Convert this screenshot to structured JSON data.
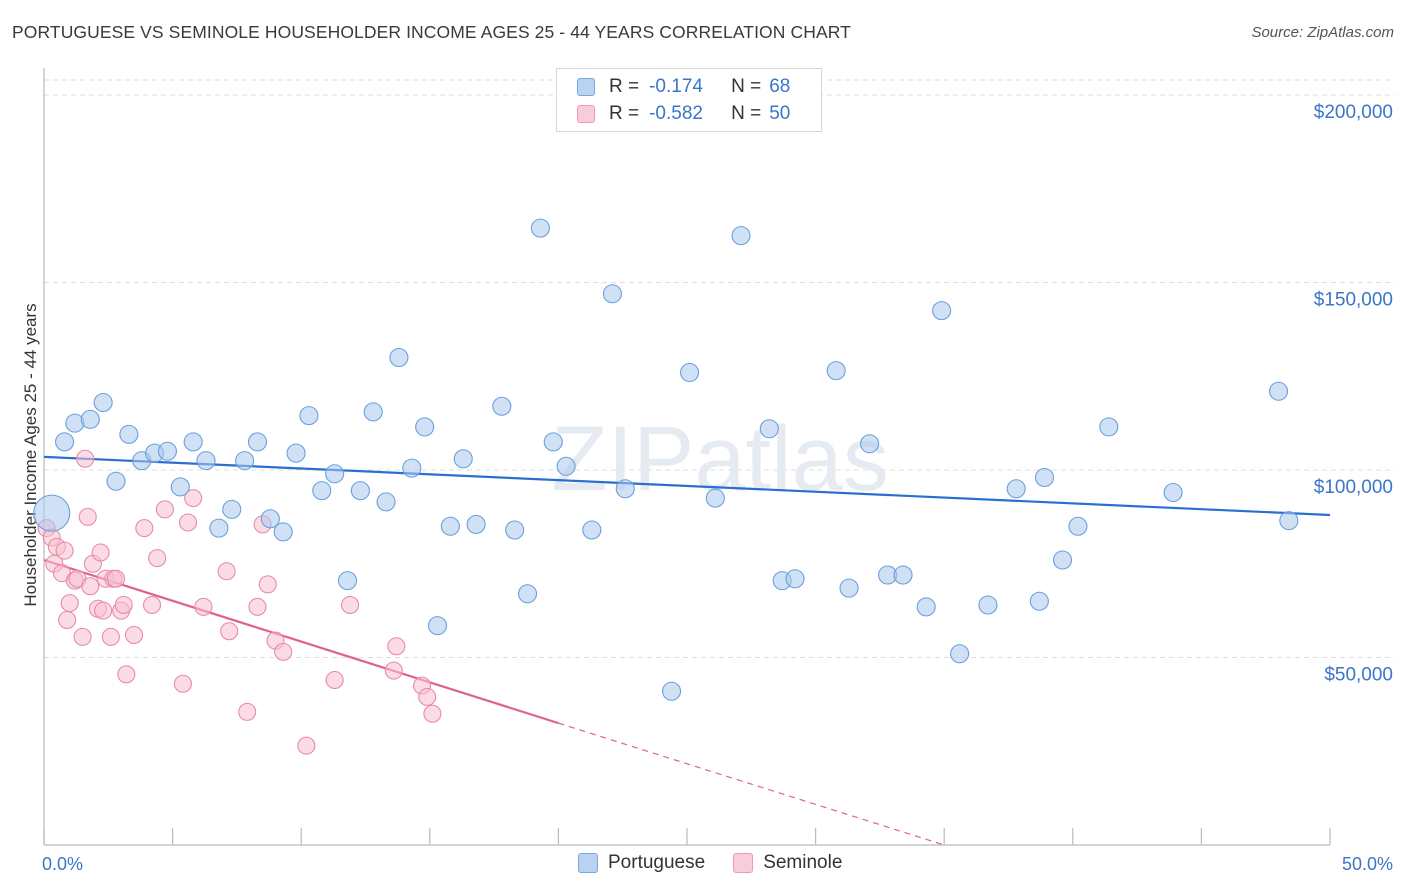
{
  "title": "PORTUGUESE VS SEMINOLE HOUSEHOLDER INCOME AGES 25 - 44 YEARS CORRELATION CHART",
  "source": "Source: ZipAtlas.com",
  "watermark": "ZIPatlas",
  "legend": {
    "rows": [
      {
        "r_label": "R =",
        "r_value": "-0.174",
        "n_label": "N =",
        "n_value": "68"
      },
      {
        "r_label": "R =",
        "r_value": "-0.582",
        "n_label": "N =",
        "n_value": "50"
      }
    ]
  },
  "bottom_legend": [
    "Portuguese",
    "Seminole"
  ],
  "colors": {
    "portuguese_fill": "#a9c8ef",
    "portuguese_stroke": "#6a9fdc",
    "portuguese_line": "#2a6fd0",
    "seminole_fill": "#f7bfcf",
    "seminole_stroke": "#e88aa6",
    "seminole_line": "#e0628c",
    "value_text": "#3a76c8",
    "grid": "#dddddd"
  },
  "chart_data": {
    "type": "scatter",
    "title": "PORTUGUESE VS SEMINOLE HOUSEHOLDER INCOME AGES 25 - 44 YEARS CORRELATION CHART",
    "xlabel": "",
    "ylabel": "Householder Income Ages 25 - 44 years",
    "xlim": [
      0,
      50
    ],
    "ylim": [
      0,
      210000
    ],
    "x_tick_labels": [
      "0.0%",
      "50.0%"
    ],
    "y_ticks": [
      50000,
      100000,
      150000,
      200000
    ],
    "y_tick_labels": [
      "$50,000",
      "$100,000",
      "$150,000",
      "$200,000"
    ],
    "grid": true,
    "series": [
      {
        "name": "Portuguese",
        "R": -0.174,
        "N": 68,
        "trend": {
          "x": [
            0,
            50
          ],
          "y": [
            103500,
            88000
          ]
        },
        "points": [
          [
            0.3,
            88500
          ],
          [
            0.8,
            107500
          ],
          [
            1.2,
            112500
          ],
          [
            1.8,
            113500
          ],
          [
            2.3,
            118000
          ],
          [
            2.8,
            97000
          ],
          [
            3.3,
            109500
          ],
          [
            3.8,
            102500
          ],
          [
            4.3,
            104500
          ],
          [
            4.8,
            105000
          ],
          [
            5.3,
            95500
          ],
          [
            5.8,
            107500
          ],
          [
            6.3,
            102500
          ],
          [
            6.8,
            84500
          ],
          [
            7.3,
            89500
          ],
          [
            7.8,
            102500
          ],
          [
            8.3,
            107500
          ],
          [
            8.8,
            87000
          ],
          [
            9.3,
            83500
          ],
          [
            9.8,
            104500
          ],
          [
            10.3,
            114500
          ],
          [
            10.8,
            94500
          ],
          [
            11.3,
            99000
          ],
          [
            11.8,
            70500
          ],
          [
            12.3,
            94500
          ],
          [
            12.8,
            115500
          ],
          [
            13.3,
            91500
          ],
          [
            13.8,
            130000
          ],
          [
            14.3,
            100500
          ],
          [
            14.8,
            111500
          ],
          [
            15.3,
            58500
          ],
          [
            15.8,
            85000
          ],
          [
            16.3,
            103000
          ],
          [
            16.8,
            85500
          ],
          [
            17.8,
            117000
          ],
          [
            18.3,
            84000
          ],
          [
            18.8,
            67000
          ],
          [
            19.3,
            164500
          ],
          [
            19.8,
            107500
          ],
          [
            20.3,
            101000
          ],
          [
            21.3,
            84000
          ],
          [
            22.1,
            147000
          ],
          [
            22.6,
            95000
          ],
          [
            24.4,
            41000
          ],
          [
            25.1,
            126000
          ],
          [
            26.1,
            92500
          ],
          [
            27.1,
            162500
          ],
          [
            28.2,
            111000
          ],
          [
            28.7,
            70500
          ],
          [
            29.2,
            71000
          ],
          [
            30.8,
            126500
          ],
          [
            31.3,
            68500
          ],
          [
            32.1,
            107000
          ],
          [
            32.8,
            72000
          ],
          [
            33.4,
            72000
          ],
          [
            34.3,
            63500
          ],
          [
            34.9,
            142500
          ],
          [
            35.6,
            51000
          ],
          [
            36.7,
            64000
          ],
          [
            37.8,
            95000
          ],
          [
            38.7,
            65000
          ],
          [
            38.9,
            98000
          ],
          [
            39.6,
            76000
          ],
          [
            40.2,
            85000
          ],
          [
            41.4,
            111500
          ],
          [
            43.9,
            94000
          ],
          [
            48.0,
            121000
          ],
          [
            48.4,
            86500
          ]
        ]
      },
      {
        "name": "Seminole",
        "R": -0.582,
        "N": 50,
        "trend": {
          "x": [
            0,
            20
          ],
          "y": [
            76000,
            32500
          ],
          "dashed_to": {
            "x": 35,
            "y": 0
          }
        },
        "points": [
          [
            0.1,
            84500
          ],
          [
            0.3,
            82000
          ],
          [
            0.4,
            75000
          ],
          [
            0.5,
            79500
          ],
          [
            0.7,
            72500
          ],
          [
            0.8,
            78500
          ],
          [
            0.9,
            60000
          ],
          [
            1.0,
            64500
          ],
          [
            1.2,
            70500
          ],
          [
            1.3,
            71000
          ],
          [
            1.5,
            55500
          ],
          [
            1.6,
            103000
          ],
          [
            1.7,
            87500
          ],
          [
            1.8,
            69000
          ],
          [
            1.9,
            75000
          ],
          [
            2.1,
            63000
          ],
          [
            2.2,
            78000
          ],
          [
            2.3,
            62500
          ],
          [
            2.4,
            71000
          ],
          [
            2.6,
            55500
          ],
          [
            2.7,
            71000
          ],
          [
            2.8,
            71000
          ],
          [
            3.0,
            62500
          ],
          [
            3.1,
            64000
          ],
          [
            3.2,
            45500
          ],
          [
            3.5,
            56000
          ],
          [
            3.9,
            84500
          ],
          [
            4.2,
            64000
          ],
          [
            4.4,
            76500
          ],
          [
            4.7,
            89500
          ],
          [
            5.4,
            43000
          ],
          [
            5.6,
            86000
          ],
          [
            5.8,
            92500
          ],
          [
            6.2,
            63500
          ],
          [
            7.1,
            73000
          ],
          [
            7.2,
            57000
          ],
          [
            7.9,
            35500
          ],
          [
            8.3,
            63500
          ],
          [
            8.5,
            85500
          ],
          [
            8.7,
            69500
          ],
          [
            9.0,
            54500
          ],
          [
            9.3,
            51500
          ],
          [
            10.2,
            26500
          ],
          [
            11.3,
            44000
          ],
          [
            11.9,
            64000
          ],
          [
            13.6,
            46500
          ],
          [
            13.7,
            53000
          ],
          [
            14.7,
            42500
          ],
          [
            14.9,
            39500
          ],
          [
            15.1,
            35000
          ]
        ]
      }
    ]
  }
}
